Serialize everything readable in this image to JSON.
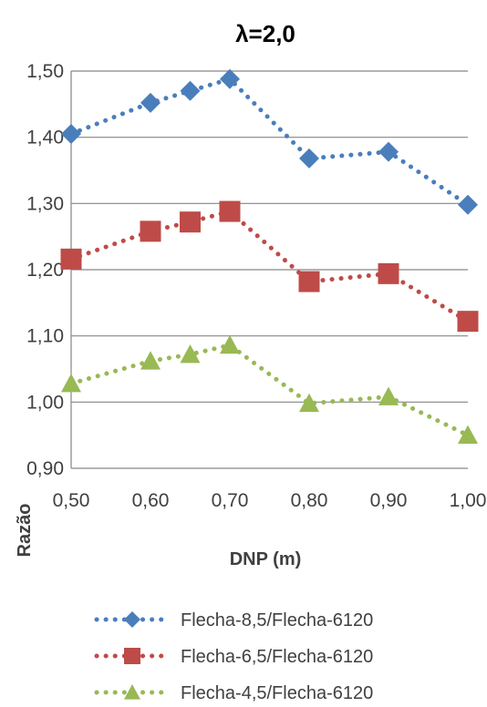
{
  "chart_data": {
    "type": "line",
    "title": "λ=2,0",
    "xlabel": "DNP (m)",
    "ylabel": "Razão",
    "x": [
      0.5,
      0.6,
      0.65,
      0.7,
      0.8,
      0.9,
      1.0
    ],
    "xticks": [
      0.5,
      0.6,
      0.7,
      0.8,
      0.9,
      1.0
    ],
    "xtick_labels": [
      "0,50",
      "0,60",
      "0,70",
      "0,80",
      "0,90",
      "1,00"
    ],
    "yticks": [
      0.9,
      1.0,
      1.1,
      1.2,
      1.3,
      1.4,
      1.5
    ],
    "ytick_labels": [
      "0,90",
      "1,00",
      "1,10",
      "1,20",
      "1,30",
      "1,40",
      "1,50"
    ],
    "xlim": [
      0.5,
      1.0
    ],
    "ylim": [
      0.9,
      1.5
    ],
    "grid": "horizontal",
    "legend_position": "bottom",
    "series": [
      {
        "name": "Flecha-8,5/Flecha-6120",
        "color": "#4a7ebb",
        "marker": "diamond",
        "line": "dotted",
        "values": [
          1.405,
          1.452,
          1.47,
          1.488,
          1.368,
          1.378,
          1.298
        ]
      },
      {
        "name": "Flecha-6,5/Flecha-6120",
        "color": "#be4b48",
        "marker": "square",
        "line": "dotted",
        "values": [
          1.216,
          1.258,
          1.272,
          1.288,
          1.182,
          1.194,
          1.122
        ]
      },
      {
        "name": "Flecha-4,5/Flecha-6120",
        "color": "#98b954",
        "marker": "triangle",
        "line": "dotted",
        "values": [
          1.028,
          1.062,
          1.072,
          1.086,
          0.998,
          1.008,
          0.95
        ]
      }
    ]
  }
}
